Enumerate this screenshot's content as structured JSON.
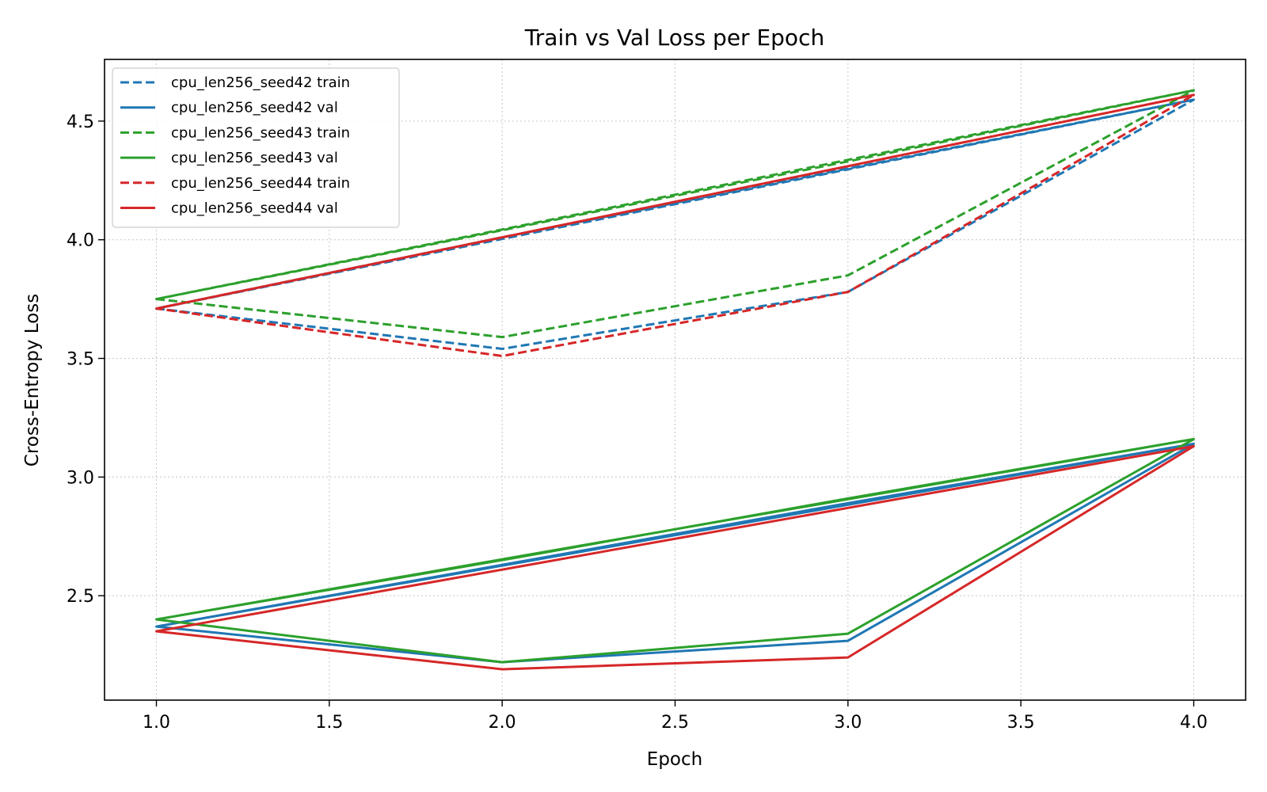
{
  "chart_data": {
    "type": "line",
    "title": "Train vs Val Loss per Epoch",
    "xlabel": "Epoch",
    "ylabel": "Cross-Entropy Loss",
    "xlim": [
      0.85,
      4.15
    ],
    "ylim": [
      2.06,
      4.76
    ],
    "xticks": [
      1.0,
      1.5,
      2.0,
      2.5,
      3.0,
      3.5,
      4.0
    ],
    "xtick_labels": [
      "1.0",
      "1.5",
      "2.0",
      "2.5",
      "3.0",
      "3.5",
      "4.0"
    ],
    "yticks": [
      2.5,
      3.0,
      3.5,
      4.0,
      4.5
    ],
    "ytick_labels": [
      "2.5",
      "3.0",
      "3.5",
      "4.0",
      "4.5"
    ],
    "grid": true,
    "legend_position": "top-left",
    "series": [
      {
        "name": "cpu_len256_seed42 train",
        "color": "#1f77b4",
        "style": "dashed",
        "x": [
          1,
          2,
          3,
          4,
          1,
          2,
          3,
          4
        ],
        "y": [
          3.71,
          4.01,
          4.3,
          4.59,
          3.71,
          3.54,
          3.78,
          4.59
        ]
      },
      {
        "name": "cpu_len256_seed42 val",
        "color": "#1f77b4",
        "style": "solid",
        "x": [
          1,
          2,
          3,
          4,
          1,
          2,
          3,
          4
        ],
        "y": [
          2.37,
          2.63,
          2.89,
          3.14,
          2.37,
          2.22,
          2.31,
          3.14
        ]
      },
      {
        "name": "cpu_len256_seed43 train",
        "color": "#2ca02c",
        "style": "dashed",
        "x": [
          1,
          2,
          3,
          4,
          1,
          2,
          3,
          4
        ],
        "y": [
          3.75,
          4.04,
          4.33,
          4.63,
          3.75,
          3.59,
          3.85,
          4.63
        ]
      },
      {
        "name": "cpu_len256_seed43 val",
        "color": "#2ca02c",
        "style": "solid",
        "x": [
          1,
          2,
          3,
          4,
          1,
          2,
          3,
          4
        ],
        "y": [
          2.4,
          2.65,
          2.91,
          3.16,
          2.4,
          2.22,
          2.34,
          3.16
        ]
      },
      {
        "name": "cpu_len256_seed44 train",
        "color": "#d62728",
        "style": "dashed",
        "x": [
          1,
          2,
          3,
          4,
          1,
          2,
          3,
          4
        ],
        "y": [
          3.71,
          4.01,
          4.31,
          4.61,
          3.71,
          3.51,
          3.78,
          4.61
        ]
      },
      {
        "name": "cpu_len256_seed44 val",
        "color": "#d62728",
        "style": "solid",
        "x": [
          1,
          2,
          3,
          4,
          1,
          2,
          3,
          4
        ],
        "y": [
          2.35,
          2.61,
          2.87,
          3.13,
          2.35,
          2.19,
          2.24,
          3.13
        ]
      }
    ]
  }
}
